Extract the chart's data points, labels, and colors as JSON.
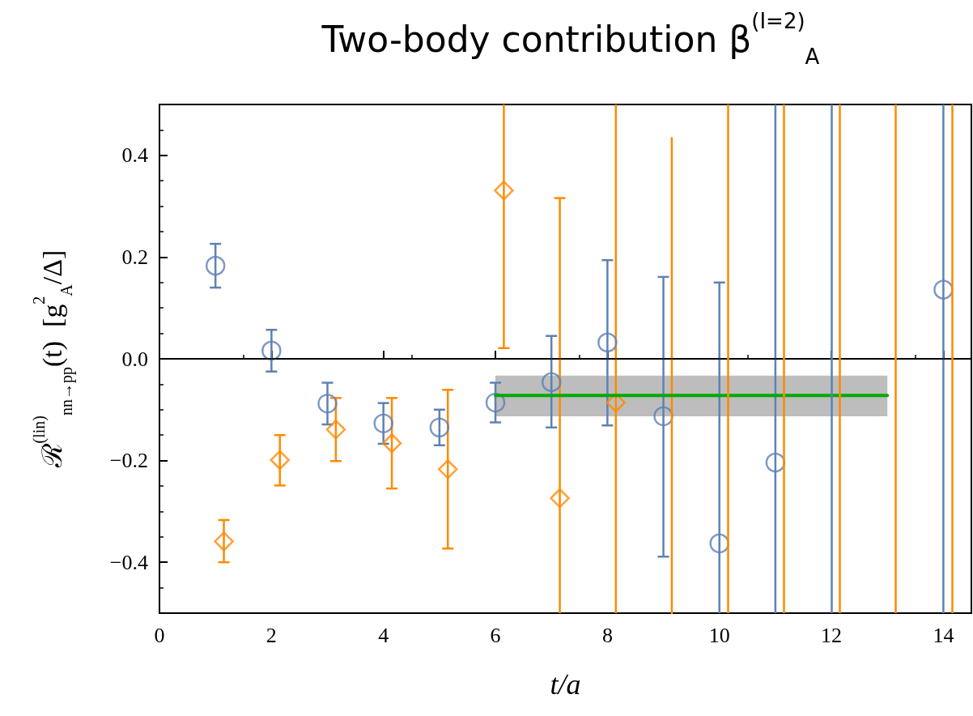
{
  "chart_data": {
    "type": "scatter",
    "title": "Two-body contribution β$^{(I=2)}$$_{A}$",
    "xlabel": "t/a",
    "ylabel": "ℛ$^{(lin)}$$_{nn→pp}$(t)  [g$^{2}$$_{A}$/Δ]",
    "xlim": [
      0,
      14.5
    ],
    "xticks": [
      0,
      2,
      4,
      6,
      8,
      10,
      12,
      14
    ],
    "ylim": [
      -0.5,
      0.5
    ],
    "yticks": [
      {
        "value": -0.4,
        "label": "−0.4"
      },
      {
        "value": -0.2,
        "label": "−0.2"
      },
      {
        "value": 0,
        "label": "0.0"
      },
      {
        "value": 0.2,
        "label": "0.2"
      },
      {
        "value": 0.4,
        "label": "0.4"
      }
    ],
    "grid": false,
    "ref_lines": [
      {
        "axis": "y",
        "value": 0,
        "color": "#000000"
      },
      {
        "axis": "x",
        "value": 12,
        "color": "#5e81b5"
      },
      {
        "axis": "x",
        "value": 10.15,
        "color": "#ff8a00"
      },
      {
        "axis": "x",
        "value": 11.15,
        "color": "#ff8a00"
      },
      {
        "axis": "x",
        "value": 12.15,
        "color": "#ff8a00"
      },
      {
        "axis": "x",
        "value": 13.15,
        "color": "#ff8a00"
      },
      {
        "axis": "x",
        "value": 14.15,
        "color": "#ff8a00"
      }
    ],
    "series": [
      {
        "marker": "circle",
        "color": "#5e81b5",
        "x": [
          1,
          2,
          3,
          4,
          5,
          6,
          7,
          8,
          9,
          10,
          11,
          14
        ],
        "values": [
          0.183,
          0.016,
          -0.088,
          -0.127,
          -0.135,
          -0.086,
          -0.046,
          0.032,
          -0.113,
          -0.363,
          -0.204,
          0.136
        ],
        "errors": [
          [
            0.14,
            0.226
          ],
          [
            -0.025,
            0.057
          ],
          [
            -0.129,
            -0.047
          ],
          [
            -0.167,
            -0.087
          ],
          [
            -0.17,
            -0.1
          ],
          [
            -0.125,
            -0.047
          ],
          [
            -0.135,
            0.045
          ],
          [
            -0.131,
            0.194
          ],
          [
            -0.389,
            0.161
          ],
          [
            -0.5,
            0.15
          ],
          [
            -0.5,
            0.5
          ],
          [
            -0.5,
            0.5
          ]
        ]
      },
      {
        "marker": "diamond",
        "color": "#ff8a00",
        "x": [
          1.15,
          2.15,
          3.15,
          4.15,
          5.15,
          6.15,
          7.15,
          8.15
        ],
        "values": [
          -0.359,
          -0.199,
          -0.139,
          -0.166,
          -0.217,
          0.331,
          -0.274,
          -0.086
        ],
        "errors": [
          [
            -0.4,
            -0.317
          ],
          [
            -0.249,
            -0.15
          ],
          [
            -0.201,
            -0.077
          ],
          [
            -0.255,
            -0.077
          ],
          [
            -0.373,
            -0.061
          ],
          [
            0.021,
            0.5
          ],
          [
            -0.5,
            0.316
          ],
          [
            -0.5,
            0.5
          ]
        ]
      },
      {
        "type": "line",
        "marker": "none",
        "color": "#ff8a00",
        "x": [
          9.15,
          9.15
        ],
        "values": [
          -0.5,
          0.434
        ]
      },
      {
        "type": "line",
        "marker": "none",
        "color": "#00aa00",
        "x": [
          6,
          13
        ],
        "values": [
          -0.072,
          -0.072
        ],
        "lower": [
          -0.113,
          -0.113
        ],
        "upper": [
          -0.033,
          -0.033
        ]
      }
    ]
  }
}
